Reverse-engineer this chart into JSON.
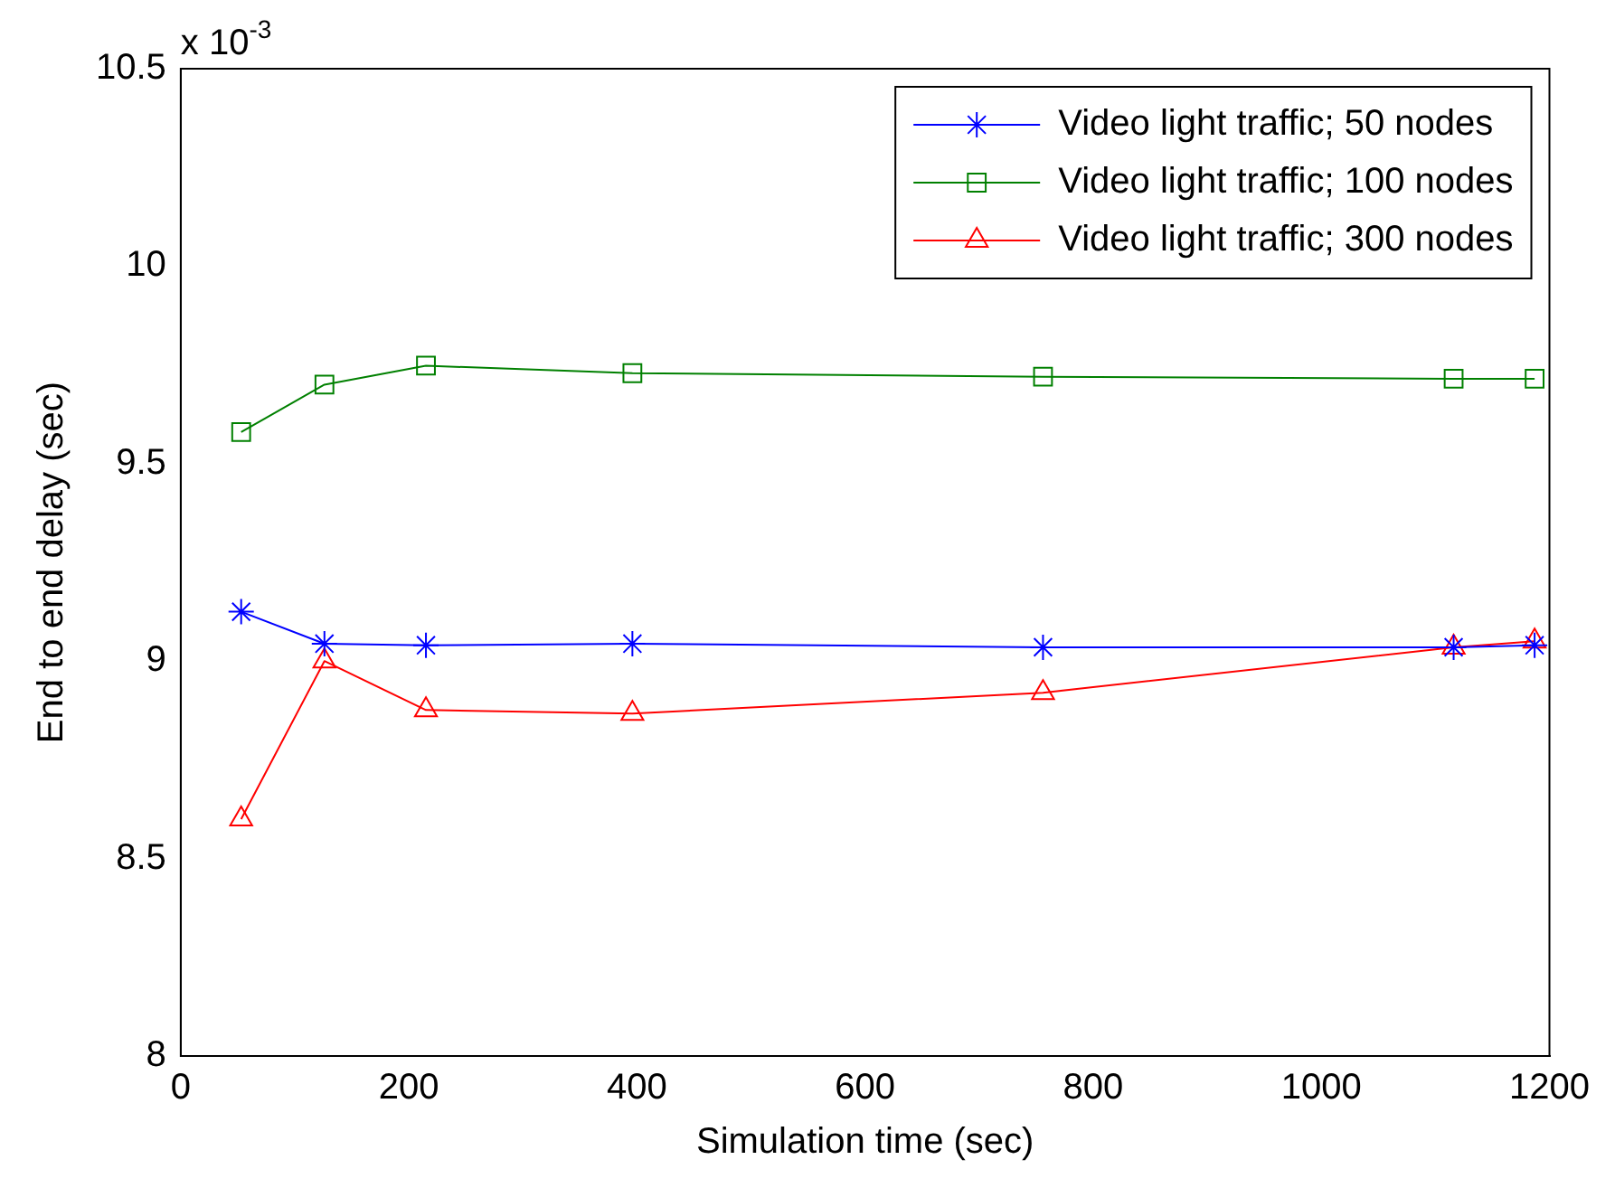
{
  "chart_data": {
    "type": "line",
    "xlabel": "Simulation time (sec)",
    "ylabel": "End to end delay (sec)",
    "annotations": [
      "x 10$^{-3}$"
    ],
    "xlim": [
      0,
      1200
    ],
    "xticks": [
      0,
      200,
      400,
      600,
      800,
      1000,
      1200
    ],
    "ylim": [
      8,
      10.5
    ],
    "yticks": [
      8,
      8.5,
      9,
      9.5,
      10,
      10.5
    ],
    "grid": false,
    "legend": "top right",
    "line_style": "solid",
    "series": [
      {
        "name": "Video light traffic; 50 nodes",
        "color": "#0000ff",
        "marker": "cross",
        "x": [
          53,
          126,
          215,
          396,
          756,
          1116,
          1187
        ],
        "values": [
          9.125,
          9.044,
          9.04,
          9.044,
          9.035,
          9.035,
          9.04
        ]
      },
      {
        "name": "Video light traffic; 100 nodes",
        "color": "#008000",
        "marker": "square",
        "x": [
          53,
          126,
          215,
          396,
          756,
          1116,
          1187
        ],
        "values": [
          9.58,
          9.7,
          9.748,
          9.729,
          9.72,
          9.715,
          9.715
        ]
      },
      {
        "name": "Video light traffic; 300 nodes",
        "color": "#ff0000",
        "marker": "triangle",
        "x": [
          53,
          126,
          215,
          396,
          756,
          1116,
          1187
        ],
        "values": [
          8.6,
          9.0,
          8.876,
          8.867,
          8.92,
          9.035,
          9.05
        ]
      }
    ]
  }
}
